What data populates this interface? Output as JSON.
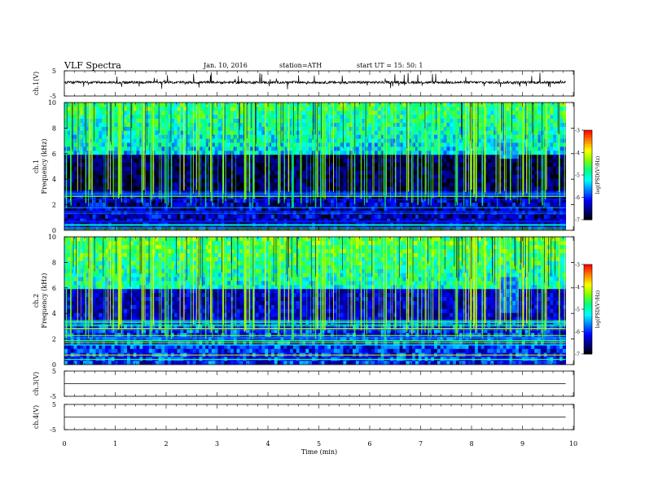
{
  "header": {
    "title": "VLF  Spectra",
    "date": "Jan. 10, 2016",
    "station": "station=ATH",
    "start": "start  UT  =    15: 50: 1"
  },
  "chart_data": [
    {
      "type": "line",
      "panel": "ch1-waveform",
      "ylabel": "ch.1(V)",
      "yticks": [
        "5",
        "-5"
      ],
      "ylim": [
        -5,
        5
      ],
      "baseline": 0.4,
      "noise_amplitude": 0.5,
      "x_range": [
        0,
        9.85
      ]
    },
    {
      "type": "heatmap",
      "panel": "ch1-spectrogram",
      "ylabel": "ch.1\nFrequency  (kHz)",
      "ylabel_channel": "ch.1",
      "ylabel_quantity": "Frequency  (kHz)",
      "yticks": [
        "0",
        "2",
        "4",
        "6",
        "8",
        "10"
      ],
      "ylim": [
        0,
        10
      ],
      "x_range": [
        0,
        9.85
      ],
      "colorbar": {
        "label": "log(PSD(V²/Hz)",
        "ticks": [
          "-3",
          "-4",
          "-5",
          "-6",
          "-7"
        ],
        "range": [
          -7,
          -3
        ]
      },
      "features": [
        {
          "band_khz": [
            0,
            3.2
          ],
          "desc": "dense horizontal lines"
        },
        {
          "band_khz": [
            3.2,
            6
          ],
          "level": -6.7
        },
        {
          "band_khz": [
            6,
            10
          ],
          "level": -5.3,
          "desc": "sferics broadband, vertical streaks"
        },
        {
          "time_min": [
            8.55,
            8.95
          ],
          "band_khz": [
            5.5,
            7.0
          ],
          "level": -5.6
        }
      ]
    },
    {
      "type": "heatmap",
      "panel": "ch2-spectrogram",
      "ylabel": "ch.2\nFrequency  (kHz)",
      "ylabel_channel": "ch.2",
      "ylabel_quantity": "Frequency  (kHz)",
      "yticks": [
        "0",
        "2",
        "4",
        "6",
        "8",
        "10"
      ],
      "ylim": [
        0,
        10
      ],
      "x_range": [
        0,
        9.85
      ],
      "colorbar": {
        "label": "log(PSD(V²/Hz)",
        "ticks": [
          "-3",
          "-4",
          "-5",
          "-6",
          "-7"
        ],
        "range": [
          -7,
          -3
        ]
      },
      "features": [
        {
          "band_khz": [
            0,
            3.5
          ],
          "desc": "dense horizontal lines"
        },
        {
          "band_khz": [
            3.5,
            6
          ],
          "level": -6.3
        },
        {
          "band_khz": [
            6,
            10
          ],
          "level": -5.1,
          "desc": "sferics broadband, vertical streaks"
        },
        {
          "time_min": [
            8.55,
            8.95
          ],
          "band_khz": [
            4.0,
            6.8
          ],
          "level": -5.7
        }
      ]
    },
    {
      "type": "line",
      "panel": "ch3-waveform",
      "ylabel": "ch.3(V)",
      "yticks": [
        "5",
        "-5"
      ],
      "ylim": [
        -5,
        5
      ],
      "value": 0,
      "x_range": [
        0,
        9.85
      ]
    },
    {
      "type": "line",
      "panel": "ch4-waveform",
      "ylabel": "ch.4(V)",
      "yticks": [
        "5",
        "-5"
      ],
      "ylim": [
        -5,
        5
      ],
      "value": 0,
      "x_range": [
        0,
        9.85
      ]
    }
  ],
  "xaxis": {
    "label": "Time  (min)",
    "ticks": [
      "0",
      "1",
      "2",
      "3",
      "4",
      "5",
      "6",
      "7",
      "8",
      "9",
      "10"
    ],
    "xlim": [
      0,
      10
    ]
  },
  "colormap": [
    "#000000",
    "#000080",
    "#0000ff",
    "#0080ff",
    "#00ffff",
    "#00ff80",
    "#80ff00",
    "#ffff00",
    "#ff8000",
    "#ff0000",
    "#ffffff"
  ]
}
